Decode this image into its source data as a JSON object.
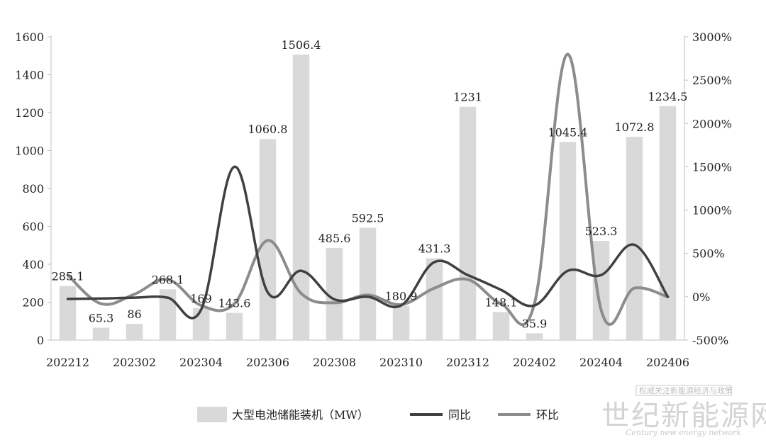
{
  "chart_data": {
    "type": "bar",
    "categories": [
      "202212",
      "202301",
      "202302",
      "202303",
      "202304",
      "202305",
      "202306",
      "202307",
      "202308",
      "202309",
      "202310",
      "202311",
      "202312",
      "202401",
      "202402",
      "202403",
      "202404",
      "202405",
      "202406"
    ],
    "x_tick_labels": [
      "202212",
      "202302",
      "202304",
      "202306",
      "202308",
      "202310",
      "202312",
      "202402",
      "202404",
      "202406"
    ],
    "series": [
      {
        "name": "大型电池储能装机（MW）",
        "axis": "left",
        "kind": "bar",
        "values": [
          285.1,
          65.3,
          86,
          268.1,
          169,
          143.6,
          1060.8,
          1506.4,
          485.6,
          592.5,
          180.9,
          431.3,
          1231,
          148.1,
          35.9,
          1045.4,
          523.3,
          1072.8,
          1234.5
        ],
        "labels": [
          "285.1",
          "65.3",
          "86",
          "268.1",
          "169",
          "143.6",
          "1060.8",
          "1506.4",
          "485.6",
          "592.5",
          "180.9",
          "431.3",
          "1231",
          "148.1",
          "35.9",
          "1045.4",
          "523.3",
          "1072.8",
          "1234.5"
        ],
        "color": "#d9d9d9"
      },
      {
        "name": "同比",
        "axis": "right",
        "kind": "line",
        "values": [
          -25,
          -20,
          -10,
          -10,
          -150,
          1500,
          50,
          300,
          -30,
          0,
          -100,
          400,
          250,
          80,
          -100,
          300,
          250,
          600,
          0
        ],
        "color": "#404040"
      },
      {
        "name": "环比",
        "axis": "right",
        "kind": "line",
        "values": [
          250,
          -80,
          30,
          200,
          -100,
          -80,
          650,
          40,
          -70,
          20,
          -90,
          100,
          200,
          -80,
          -80,
          2800,
          -150,
          100,
          0
        ],
        "color": "#8c8c8c"
      }
    ],
    "y_left": {
      "min": 0,
      "max": 1600,
      "ticks": [
        "0",
        "200",
        "400",
        "600",
        "800",
        "1000",
        "1200",
        "1400",
        "1600"
      ]
    },
    "y_right": {
      "min": -500,
      "max": 3000,
      "ticks": [
        "-500%",
        "0%",
        "500%",
        "1000%",
        "1500%",
        "2000%",
        "2500%",
        "3000%"
      ]
    },
    "grid": false,
    "legend_position": "bottom"
  },
  "watermark": {
    "top_text": "权威关注新能源经济与政策",
    "cn_text": "世纪新能源网",
    "en_text": "Century new energy network"
  }
}
